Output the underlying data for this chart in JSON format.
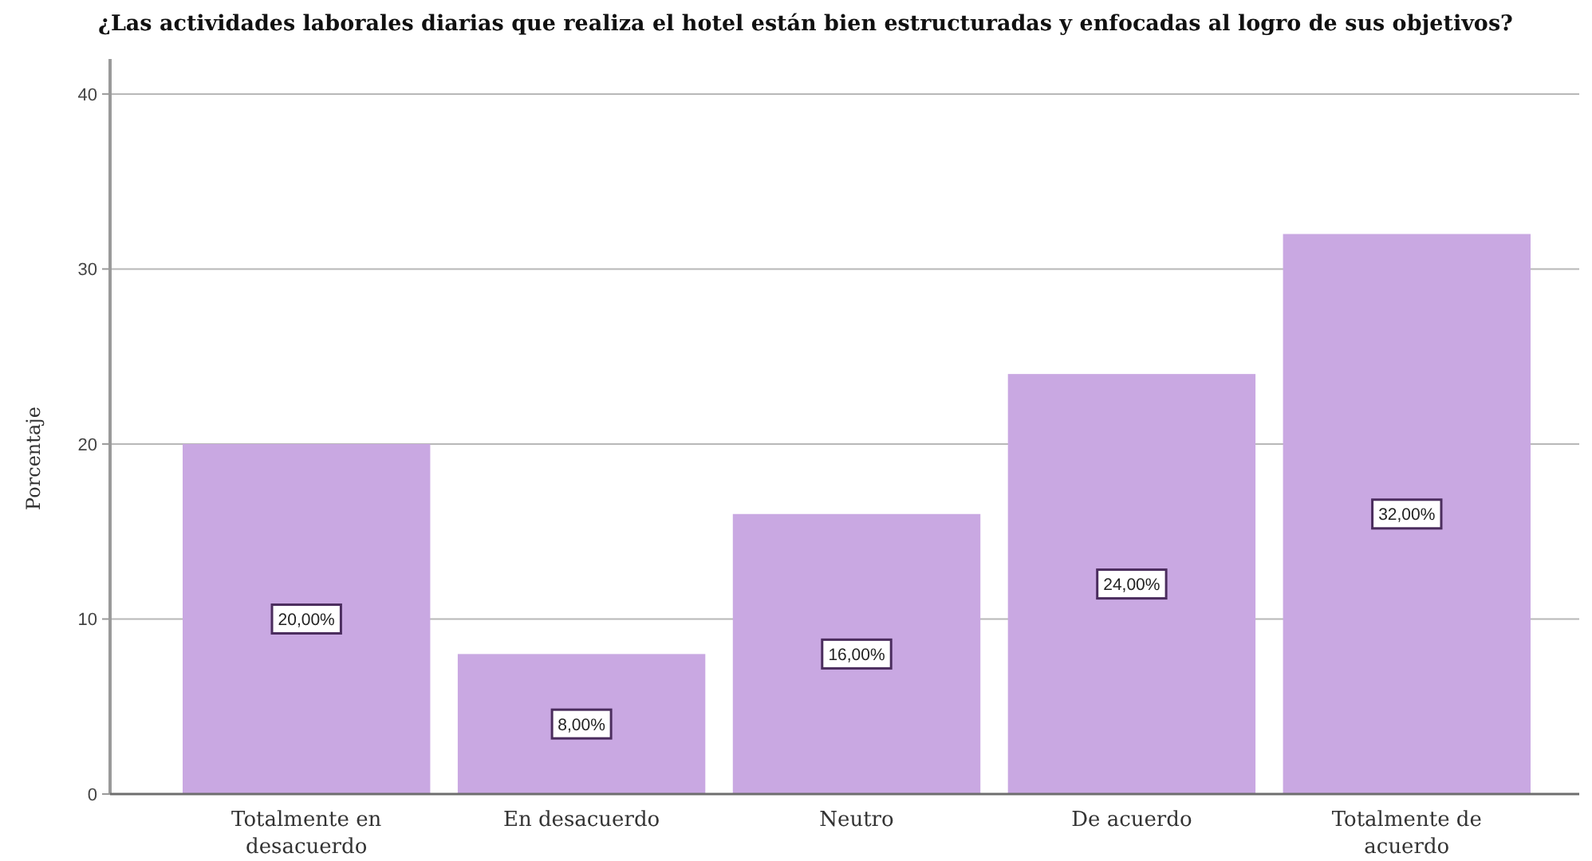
{
  "chart_data": {
    "type": "bar",
    "title": "¿Las actividades laborales diarias que realiza el hotel están bien estructuradas y enfocadas al logro de sus objetivos?",
    "ylabel": "Porcentaje",
    "categories": [
      "Totalmente en desacuerdo",
      "En desacuerdo",
      "Neutro",
      "De acuerdo",
      "Totalmente de acuerdo"
    ],
    "values": [
      20,
      8,
      16,
      24,
      32
    ],
    "color": "#c9a8e2",
    "value_labels": [
      "20,00%",
      "8,00%",
      "16,00%",
      "24,00%",
      "32,00%"
    ],
    "ylim": [
      0,
      42
    ],
    "yticks": [
      0,
      10,
      20,
      30,
      40
    ],
    "grid": "y"
  }
}
